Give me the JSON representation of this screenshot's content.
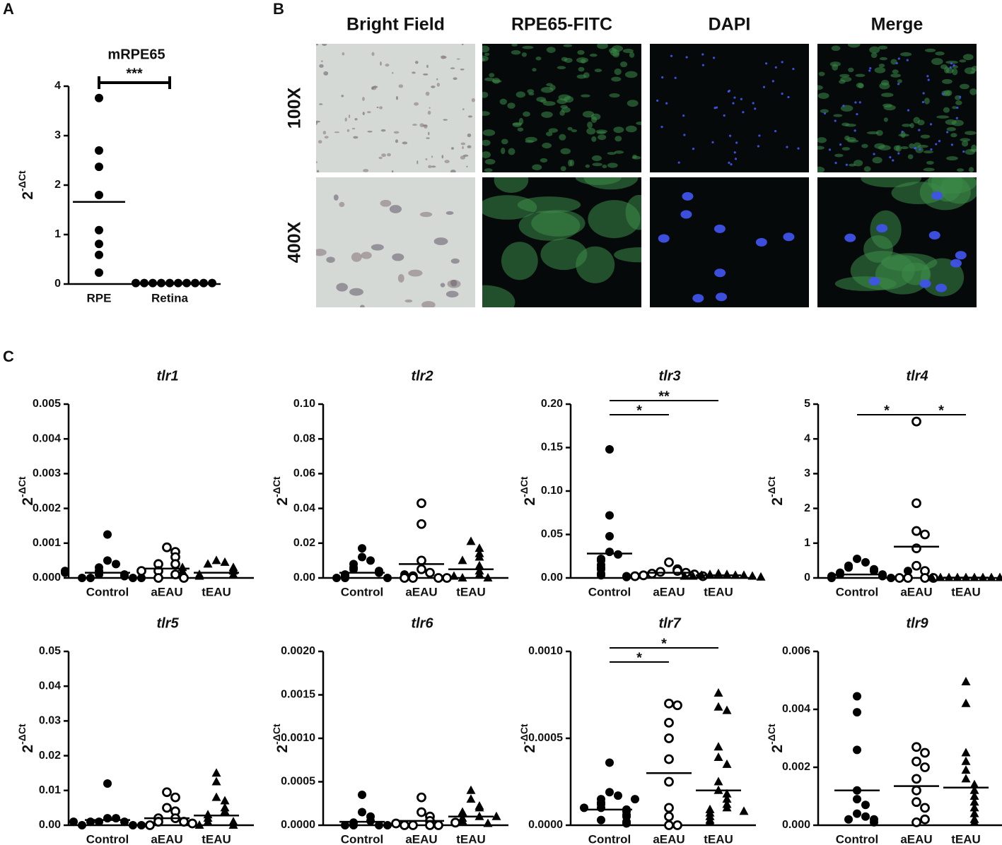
{
  "panel_labels": [
    "A",
    "B",
    "C"
  ],
  "image_panel": {
    "columns": [
      "Bright Field",
      "RPE65-FITC",
      "DAPI",
      "Merge"
    ],
    "rows": [
      "100X",
      "400X"
    ]
  },
  "chart_data": [
    {
      "type": "dotplot",
      "title": "mRPE65",
      "title_italic": false,
      "ylabel": "2",
      "ylabel_superscript": "-ΔCt",
      "categories": [
        "RPE",
        "Retina"
      ],
      "markers": [
        "circle-filled",
        "circle-filled"
      ],
      "points": [
        [
          3.76,
          2.7,
          2.37,
          1.8,
          1.09,
          0.81,
          0.59,
          0.23
        ],
        [
          0.02,
          0.02,
          0.02,
          0.02,
          0.02,
          0.02,
          0.02,
          0.02,
          0.02,
          0.02
        ]
      ],
      "means": [
        1.66,
        0.02
      ],
      "ylim": [
        0,
        4
      ],
      "yticks": [
        0,
        1,
        2,
        3,
        4
      ],
      "significance": [
        {
          "from": 0,
          "to": 1,
          "label": "***"
        }
      ],
      "bracket_caps": true
    },
    {
      "type": "dotplot",
      "title": "tlr1",
      "title_italic": true,
      "ylabel": "2",
      "ylabel_superscript": "-ΔCt",
      "categories": [
        "Control",
        "aEAU",
        "tEAU"
      ],
      "markers": [
        "circle-filled",
        "circle-open",
        "triangle"
      ],
      "points": [
        [
          0.00125,
          0.0005,
          0.0004,
          0.0003,
          0.0002,
          0.0001,
          0.0001,
          5e-05,
          0,
          0,
          0,
          0,
          0.0002,
          0.00015
        ],
        [
          0.00088,
          0.00075,
          0.0006,
          0.0004,
          0.0004,
          0.0002,
          0.0001,
          0,
          0,
          0.0002
        ],
        [
          0.0005,
          0.00045,
          0.0004,
          0.0003,
          0.00025,
          0.0002,
          0.0001,
          0.0001,
          5e-05,
          0.0003,
          0.0002
        ]
      ],
      "means": [
        0.00015,
        0.00027,
        0.00015
      ],
      "ylim": [
        0,
        0.005
      ],
      "yticks": [
        {
          "value": 0,
          "label": "0.000"
        },
        0.001,
        0.002,
        0.003,
        0.004,
        0.005
      ],
      "significance": []
    },
    {
      "type": "dotplot",
      "title": "tlr2",
      "title_italic": true,
      "ylabel": "2",
      "ylabel_superscript": "-ΔCt",
      "categories": [
        "Control",
        "aEAU",
        "tEAU"
      ],
      "markers": [
        "circle-filled",
        "circle-open",
        "triangle"
      ],
      "points": [
        [
          0.017,
          0.012,
          0.01,
          0.008,
          0.006,
          0.005,
          0.004,
          0.003,
          0.002,
          0.001,
          0,
          0,
          0,
          0.002
        ],
        [
          0.043,
          0.031,
          0.01,
          0.005,
          0.003,
          0.001,
          0,
          0,
          0,
          0
        ],
        [
          0.021,
          0.017,
          0.014,
          0.012,
          0.01,
          0.007,
          0.004,
          0.002,
          0,
          0,
          0.001
        ]
      ],
      "means": [
        0.003,
        0.008,
        0.005
      ],
      "ylim": [
        0,
        0.1
      ],
      "yticks": [
        {
          "value": 0,
          "label": "0.00"
        },
        0.02,
        0.04,
        0.06,
        0.08,
        {
          "value": 0.1,
          "label": "0.10"
        }
      ],
      "significance": []
    },
    {
      "type": "dotplot",
      "title": "tlr3",
      "title_italic": true,
      "ylabel": "2",
      "ylabel_superscript": "-ΔCt",
      "categories": [
        "Control",
        "aEAU",
        "tEAU"
      ],
      "markers": [
        "circle-filled",
        "circle-open",
        "triangle"
      ],
      "points": [
        [
          0.148,
          0.072,
          0.048,
          0.03,
          0.027,
          0.022,
          0.02,
          0.015,
          0.012,
          0.01,
          0.005,
          0.003,
          0.002,
          0.001
        ],
        [
          0.018,
          0.01,
          0.008,
          0.007,
          0.006,
          0.005,
          0.004,
          0.003,
          0.002,
          0.002
        ],
        [
          0.005,
          0.004,
          0.004,
          0.003,
          0.003,
          0.003,
          0.002,
          0.002,
          0.002,
          0.001
        ]
      ],
      "means": [
        0.028,
        0.006,
        0.003
      ],
      "ylim": [
        0,
        0.2
      ],
      "yticks": [
        {
          "value": 0,
          "label": "0.00"
        },
        0.05,
        {
          "value": 0.1,
          "label": "0.10"
        },
        0.15,
        {
          "value": 0.2,
          "label": "0.20"
        }
      ],
      "significance": [
        {
          "from": 0,
          "to": 1,
          "label": "*"
        },
        {
          "from": 0,
          "to": 2,
          "label": "**"
        }
      ]
    },
    {
      "type": "dotplot",
      "title": "tlr4",
      "title_italic": true,
      "ylabel": "2",
      "ylabel_superscript": "-ΔCt",
      "categories": [
        "Control",
        "aEAU",
        "tEAU"
      ],
      "markers": [
        "circle-filled",
        "circle-open",
        "triangle"
      ],
      "points": [
        [
          0.55,
          0.45,
          0.35,
          0.3,
          0.25,
          0.2,
          0.15,
          0.1,
          0.1,
          0.05,
          0.05,
          0,
          0,
          0.2
        ],
        [
          4.5,
          2.15,
          1.35,
          1.25,
          0.85,
          0.35,
          0.2,
          0,
          0,
          0,
          0
        ],
        [
          0.01,
          0.01,
          0.01,
          0.01,
          0.01,
          0.01,
          0.01,
          0.01,
          0.01,
          0.01
        ]
      ],
      "means": [
        0.1,
        0.9,
        0.01
      ],
      "ylim": [
        0,
        5
      ],
      "yticks": [
        0,
        1,
        2,
        3,
        4,
        5
      ],
      "significance": [
        {
          "from": 0,
          "to": 1,
          "label": "*"
        },
        {
          "from": 1,
          "to": 2,
          "label": "*"
        }
      ]
    },
    {
      "type": "dotplot",
      "title": "tlr5",
      "title_italic": true,
      "ylabel": "2",
      "ylabel_superscript": "-ΔCt",
      "categories": [
        "Control",
        "aEAU",
        "tEAU"
      ],
      "markers": [
        "circle-filled",
        "circle-open",
        "triangle"
      ],
      "points": [
        [
          0.012,
          0.002,
          0.002,
          0.001,
          0.001,
          0.001,
          0,
          0,
          0,
          0.001
        ],
        [
          0.0095,
          0.008,
          0.005,
          0.004,
          0.002,
          0.002,
          0.001,
          0.001,
          0,
          0.0005
        ],
        [
          0.015,
          0.0125,
          0.008,
          0.007,
          0.005,
          0.004,
          0.003,
          0.002,
          0.001,
          0.001,
          0,
          0
        ]
      ],
      "means": [
        0.0015,
        0.002,
        0.0028
      ],
      "ylim": [
        0,
        0.05
      ],
      "yticks": [
        {
          "value": 0,
          "label": "0.00"
        },
        0.01,
        0.02,
        0.03,
        0.04,
        0.05
      ],
      "significance": []
    },
    {
      "type": "dotplot",
      "title": "tlr6",
      "title_italic": true,
      "ylabel": "2",
      "ylabel_superscript": "-ΔCt",
      "categories": [
        "Control",
        "aEAU",
        "tEAU"
      ],
      "markers": [
        "circle-filled",
        "circle-open",
        "triangle"
      ],
      "points": [
        [
          0.00035,
          0.00015,
          0.0001,
          5e-05,
          3e-05,
          0,
          0,
          0,
          0,
          2e-05
        ],
        [
          0.00032,
          0.00015,
          0.0001,
          5e-05,
          0,
          0,
          0,
          0,
          2e-05,
          3e-05
        ],
        [
          0.0004,
          0.0003,
          0.00022,
          0.0002,
          0.00015,
          0.0001,
          8e-05,
          5e-05,
          2e-05,
          0.0001
        ]
      ],
      "means": [
        4e-05,
        5e-05,
        0.0001
      ],
      "ylim": [
        0,
        0.002
      ],
      "yticks": [
        {
          "value": 0,
          "label": "0.0000"
        },
        0.0005,
        {
          "value": 0.001,
          "label": "0.0010"
        },
        0.0015,
        {
          "value": 0.002,
          "label": "0.0020"
        }
      ],
      "significance": []
    },
    {
      "type": "dotplot",
      "title": "tlr7",
      "title_italic": true,
      "ylabel": "2",
      "ylabel_superscript": "-ΔCt",
      "categories": [
        "Control",
        "aEAU",
        "tEAU"
      ],
      "markers": [
        "circle-filled",
        "circle-open",
        "triangle"
      ],
      "points": [
        [
          0.00036,
          0.00019,
          0.00017,
          0.00015,
          0.00013,
          0.00012,
          0.0001,
          9e-05,
          8e-05,
          6e-05,
          5e-05,
          3e-05,
          2e-05,
          1e-05,
          0.00015,
          0.0001
        ],
        [
          0.0007,
          0.00069,
          0.00059,
          0.0005,
          0.00038,
          0.00025,
          0.0001,
          5e-05,
          0,
          0
        ],
        [
          0.00076,
          0.00068,
          0.00066,
          0.00045,
          0.00039,
          0.00035,
          0.00025,
          0.0002,
          0.00018,
          0.00015,
          0.00012,
          0.0001,
          9e-05,
          7e-05,
          5e-05,
          3e-05,
          2e-05,
          8e-05
        ]
      ],
      "means": [
        9e-05,
        0.0003,
        0.0002
      ],
      "ylim": [
        0,
        0.001
      ],
      "yticks": [
        {
          "value": 0,
          "label": "0.0000"
        },
        0.0005,
        {
          "value": 0.001,
          "label": "0.0010"
        }
      ],
      "significance": [
        {
          "from": 0,
          "to": 1,
          "label": "*"
        },
        {
          "from": 0,
          "to": 2,
          "label": "*"
        }
      ]
    },
    {
      "type": "dotplot",
      "title": "tlr9",
      "title_italic": true,
      "ylabel": "2",
      "ylabel_superscript": "-ΔCt",
      "categories": [
        "Control",
        "aEAU",
        "tEAU"
      ],
      "markers": [
        "circle-filled",
        "circle-open",
        "triangle"
      ],
      "points": [
        [
          0.00445,
          0.0039,
          0.0026,
          0.0012,
          0.0009,
          0.0007,
          0.0004,
          0.0003,
          0.0002,
          0.0002,
          0.0001
        ],
        [
          0.0027,
          0.0025,
          0.0022,
          0.002,
          0.0016,
          0.0012,
          0.0008,
          0.0006,
          0.0001,
          0.0002
        ],
        [
          0.00495,
          0.0042,
          0.0025,
          0.0022,
          0.0019,
          0.0016,
          0.0014,
          0.0012,
          0.001,
          0.0008,
          0.0006,
          0.0004,
          0.0002,
          0.0001
        ]
      ],
      "means": [
        0.0012,
        0.00135,
        0.0013
      ],
      "ylim": [
        0,
        0.006
      ],
      "yticks": [
        {
          "value": 0,
          "label": "0.000"
        },
        0.002,
        0.004,
        0.006
      ],
      "significance": []
    }
  ]
}
